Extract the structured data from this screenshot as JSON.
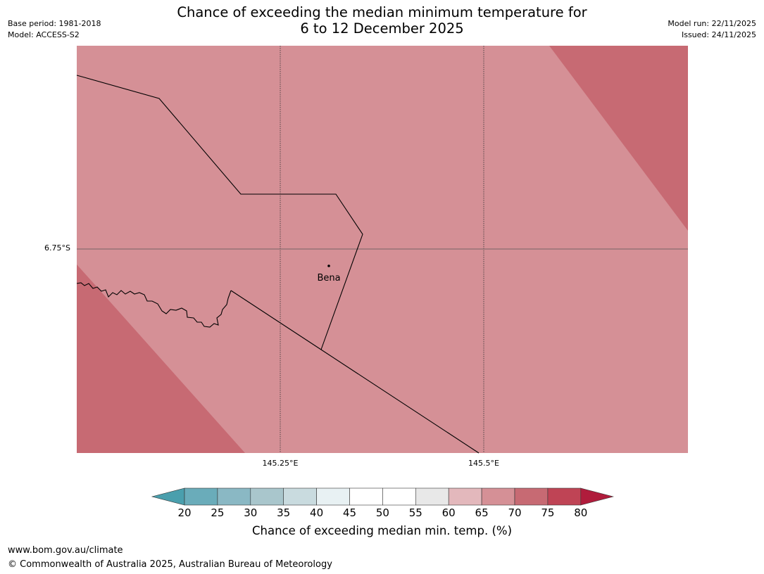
{
  "header": {
    "title_line1": "Chance of exceeding the median minimum temperature for",
    "title_line2": "6 to 12 December 2025",
    "base_period": "Base period: 1981-2018",
    "model": "Model: ACCESS-S2",
    "model_run": "Model run: 22/11/2025",
    "issued": "Issued: 24/11/2025"
  },
  "map": {
    "lat_label": "6.75°S",
    "lon_labels": [
      "145.25°E",
      "145.5°E"
    ],
    "place": "Bena",
    "colors": {
      "band_65_70": "#d59096",
      "band_70_75": "#c76a73",
      "boundary": "#000000",
      "gridline": "#333333"
    }
  },
  "colorbar": {
    "title": "Chance of exceeding median min. temp. (%)",
    "ticks": [
      "20",
      "25",
      "30",
      "35",
      "40",
      "45",
      "50",
      "55",
      "60",
      "65",
      "70",
      "75",
      "80"
    ],
    "colors": [
      "#4a9fad",
      "#6aacba",
      "#8ab8c4",
      "#a9c6cc",
      "#c9dbdf",
      "#e8f1f3",
      "#ffffff",
      "#ffffff",
      "#e8e8e8",
      "#e3b8bc",
      "#d59096",
      "#c76a73",
      "#bf4455",
      "#b01c3c"
    ]
  },
  "footer": {
    "website": "www.bom.gov.au/climate",
    "copyright": "© Commonwealth of Australia 2025, Australian Bureau of Meteorology"
  }
}
